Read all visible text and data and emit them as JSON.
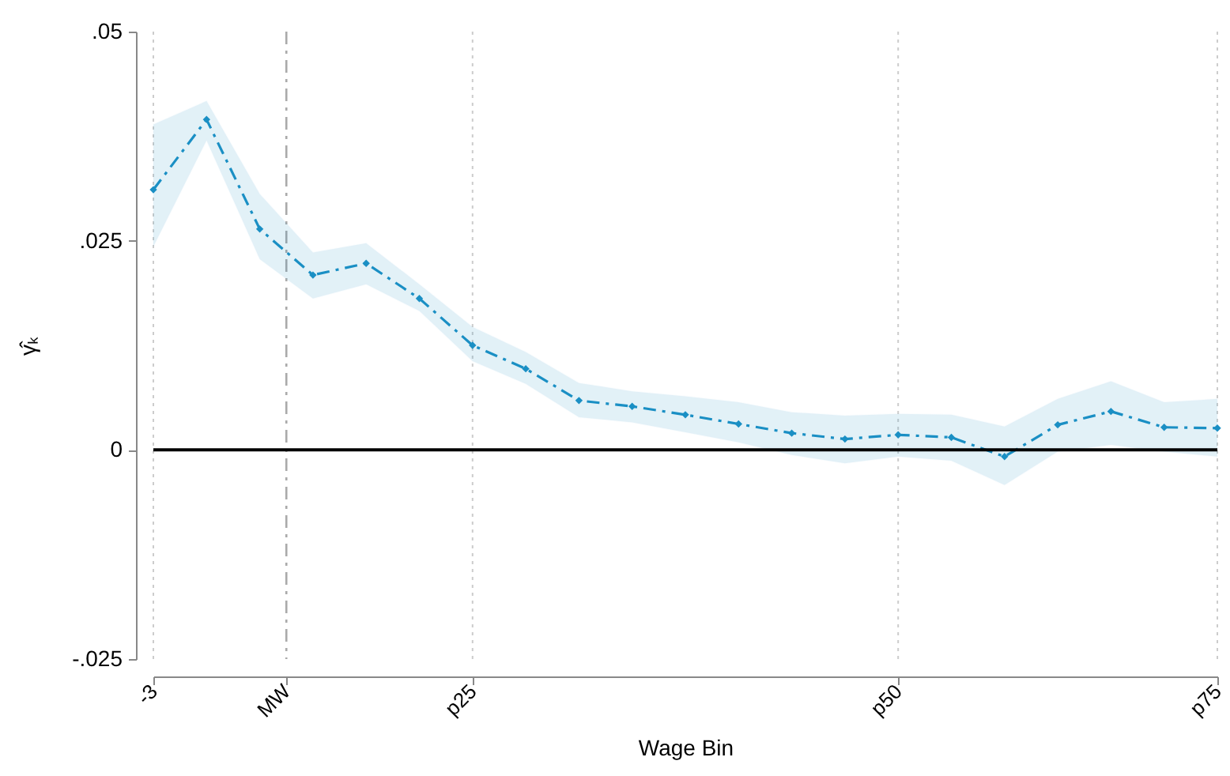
{
  "chart_data": {
    "type": "line",
    "xlabel": "Wage Bin",
    "ylabel": "γ̂ₖ",
    "categories": [
      "-3",
      null,
      null,
      null,
      null,
      null,
      "p25",
      null,
      null,
      null,
      null,
      null,
      null,
      null,
      "p50",
      null,
      null,
      null,
      null,
      null,
      "p75"
    ],
    "series": [
      {
        "color": "#1a8fc4",
        "values": [
          0.0311,
          0.0395,
          0.0264,
          0.0209,
          0.0223,
          0.0181,
          0.0125,
          0.0097,
          0.0059,
          0.0052,
          0.0042,
          0.0031,
          0.002,
          0.0013,
          0.0018,
          0.0015,
          -0.0008,
          0.003,
          0.0046,
          0.0027,
          0.0026
        ],
        "lower": [
          0.0243,
          0.037,
          0.0228,
          0.0181,
          0.0198,
          0.0166,
          0.0106,
          0.0079,
          0.0039,
          0.0033,
          0.0021,
          0.0009,
          -0.0006,
          -0.0016,
          -0.0008,
          -0.0013,
          -0.0042,
          -0.0002,
          0.0006,
          -0.0002,
          -0.0008
        ],
        "upper": [
          0.0389,
          0.0417,
          0.0306,
          0.0236,
          0.0247,
          0.0198,
          0.0147,
          0.0117,
          0.008,
          0.007,
          0.0064,
          0.0057,
          0.0045,
          0.0041,
          0.0043,
          0.0042,
          0.0028,
          0.0061,
          0.0082,
          0.0057,
          0.0061
        ]
      }
    ],
    "ylim": [
      -0.025,
      0.05
    ],
    "yticks": [
      {
        "value": -0.025,
        "label": "-.025"
      },
      {
        "value": 0,
        "label": "0"
      },
      {
        "value": 0.025,
        "label": ".025"
      },
      {
        "value": 0.05,
        "label": ".05"
      }
    ],
    "annotations": [
      "MW"
    ],
    "ref_lines": [
      {
        "axis": "y",
        "value": 0,
        "color": "#000000",
        "line_style": "solid"
      }
    ],
    "grid": "x",
    "marker": "diamond",
    "line_style": "dashed"
  }
}
